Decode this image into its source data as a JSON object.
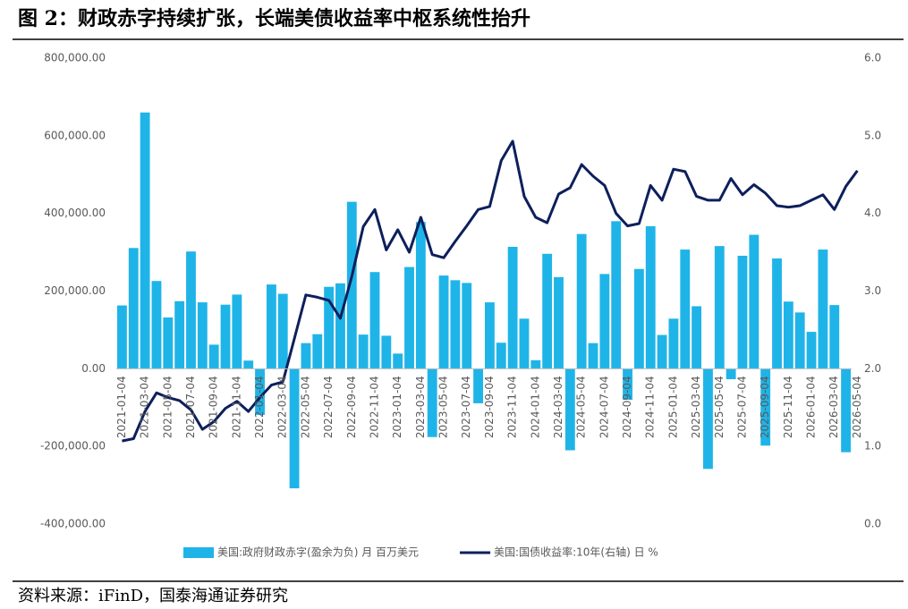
{
  "chart_data": {
    "type": "combo",
    "title": "图 2：财政赤字持续扩张，长端美债收益率中枢系统性抬升",
    "source": "资料来源：iFinD，国泰海通证券研究",
    "categories": [
      "2021-01-04",
      null,
      "2021-03-04",
      null,
      "2021-05-04",
      null,
      "2021-07-04",
      null,
      "2021-09-04",
      null,
      "2021-11-04",
      null,
      "2022-01-04",
      null,
      "2022-03-04",
      null,
      "2022-05-04",
      null,
      "2022-07-04",
      null,
      "2022-09-04",
      null,
      "2022-11-04",
      null,
      "2023-01-04",
      null,
      "2023-03-04",
      null,
      "2023-05-04",
      null,
      "2023-07-04",
      null,
      "2023-09-04",
      null,
      "2023-11-04",
      null,
      "2024-01-04",
      null,
      "2024-03-04",
      null,
      "2024-05-04",
      null,
      "2024-07-04",
      null,
      "2024-09-04",
      null,
      "2024-11-04",
      null,
      "2025-01-04",
      null,
      "2025-03-04",
      null,
      "2025-05-04",
      null,
      "2025-07-04",
      null,
      "2025-09-04",
      null,
      "2025-11-04",
      null,
      "2026-01-04",
      null,
      "2026-03-04",
      null,
      "2026-05-04"
    ],
    "series": [
      {
        "name": "美国:政府财政赤字(盈余为负) 月 百万美元",
        "type": "bar",
        "color": "#1fb4e8",
        "values": [
          163000,
          311000,
          660000,
          226000,
          132000,
          174000,
          302000,
          171000,
          62000,
          165000,
          191000,
          21000,
          -119000,
          217000,
          193000,
          -308000,
          66000,
          89000,
          211000,
          220000,
          430000,
          88000,
          249000,
          85000,
          39000,
          262000,
          378000,
          -176000,
          240000,
          228000,
          221000,
          -89000,
          171000,
          67000,
          314000,
          129000,
          22000,
          296000,
          236000,
          -210000,
          347000,
          66000,
          244000,
          380000,
          -80000,
          257000,
          367000,
          87000,
          129000,
          307000,
          161000,
          -258000,
          316000,
          -27000,
          291000,
          345000,
          -198000,
          284000,
          173000,
          145000,
          95000,
          307000,
          164000,
          -215000,
          null
        ]
      },
      {
        "name": "美国:国债收益率:10年(右轴) 日 %",
        "type": "line",
        "axis": "y2",
        "color": "#0d1f5c",
        "values": [
          1.07,
          1.1,
          1.45,
          1.69,
          1.63,
          1.59,
          1.47,
          1.22,
          1.32,
          1.49,
          1.58,
          1.45,
          1.63,
          1.79,
          1.83,
          2.39,
          2.95,
          2.92,
          2.88,
          2.65,
          3.19,
          3.83,
          4.05,
          3.53,
          3.79,
          3.5,
          3.95,
          3.47,
          3.43,
          3.64,
          3.84,
          4.05,
          4.09,
          4.68,
          4.93,
          4.22,
          3.95,
          3.88,
          4.25,
          4.33,
          4.63,
          4.48,
          4.36,
          4.0,
          3.84,
          3.87,
          4.36,
          4.17,
          4.57,
          4.54,
          4.22,
          4.17,
          4.17,
          4.45,
          4.24,
          4.37,
          4.26,
          4.1,
          4.08,
          4.1,
          4.17,
          4.24,
          4.05,
          4.35,
          4.55
        ]
      }
    ],
    "ylim": [
      -400000,
      800000
    ],
    "yticks": [
      {
        "value": -400000,
        "label": "-400,000.00"
      },
      {
        "value": -200000,
        "label": "-200,000.00"
      },
      {
        "value": 0,
        "label": "0.00"
      },
      {
        "value": 200000,
        "label": "200,000.00"
      },
      {
        "value": 400000,
        "label": "400,000.00"
      },
      {
        "value": 600000,
        "label": "600,000.00"
      },
      {
        "value": 800000,
        "label": "800,000.00"
      }
    ],
    "y2lim": [
      0,
      6
    ],
    "y2ticks": [
      {
        "value": 0,
        "label": "0.0"
      },
      {
        "value": 1,
        "label": "1.0"
      },
      {
        "value": 2,
        "label": "2.0"
      },
      {
        "value": 3,
        "label": "3.0"
      },
      {
        "value": 4,
        "label": "4.0"
      },
      {
        "value": 5,
        "label": "5.0"
      },
      {
        "value": 6,
        "label": "6.0"
      }
    ],
    "legend": "bottom"
  }
}
